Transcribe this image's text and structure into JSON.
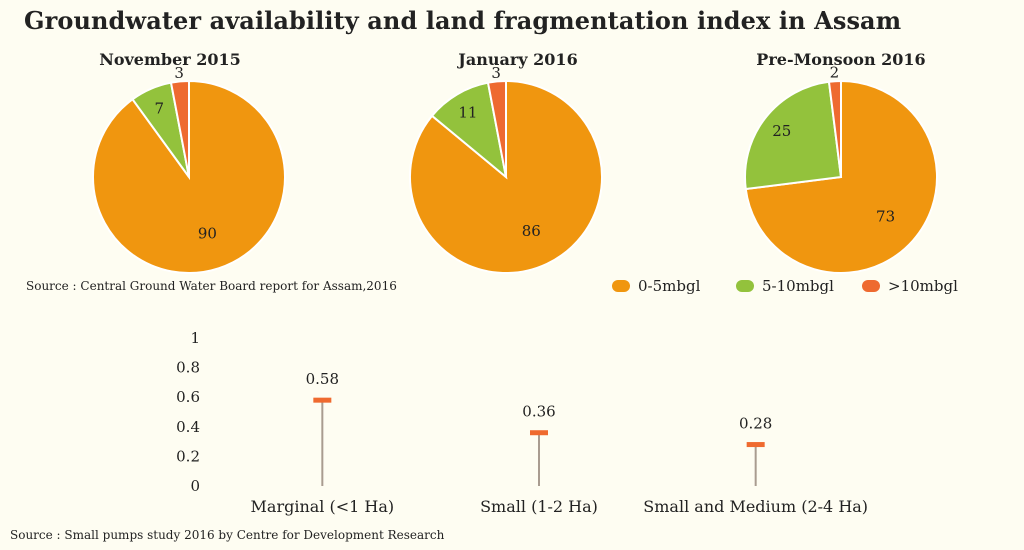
{
  "title": "Groundwater availability and land fragmentation index in Assam",
  "colors": {
    "orange": "#f0960f",
    "green": "#93c23c",
    "red": "#ee6a30",
    "stem": "#a99c90",
    "marker": "#ef6a2f"
  },
  "legend": [
    {
      "label": "0-5mbgl",
      "color": "#f0960f"
    },
    {
      "label": "5-10mbgl",
      "color": "#93c23c"
    },
    {
      "label": ">10mbgl",
      "color": "#ee6a30"
    }
  ],
  "source_top": "Source : Central Ground Water Board report for Assam,2016",
  "source_bottom": "Source : Small pumps study 2016 by Centre for Development Research",
  "chart_data": [
    {
      "type": "pie",
      "title": "November 2015",
      "categories": [
        "0-5mbgl",
        "5-10mbgl",
        ">10mbgl"
      ],
      "values": [
        90,
        7,
        3
      ]
    },
    {
      "type": "pie",
      "title": "January 2016",
      "categories": [
        "0-5mbgl",
        "5-10mbgl",
        ">10mbgl"
      ],
      "values": [
        86,
        11,
        3
      ]
    },
    {
      "type": "pie",
      "title": "Pre-Monsoon 2016",
      "categories": [
        "0-5mbgl",
        "5-10mbgl",
        ">10mbgl"
      ],
      "values": [
        73,
        25,
        2
      ]
    },
    {
      "type": "bar",
      "categories": [
        "Marginal (<1 Ha)",
        "Small (1-2 Ha)",
        "Small and Medium (2-4 Ha)"
      ],
      "values": [
        0.58,
        0.36,
        0.28
      ],
      "value_labels": [
        "0.58",
        "0.36",
        "0.28"
      ],
      "ylim": [
        0,
        1
      ],
      "yticks": [
        0,
        0.2,
        0.4,
        0.6,
        0.8,
        1
      ],
      "ytick_labels": [
        "0",
        "0.2",
        "0.4",
        "0.6",
        "0.8",
        "1"
      ],
      "grid": false
    }
  ]
}
